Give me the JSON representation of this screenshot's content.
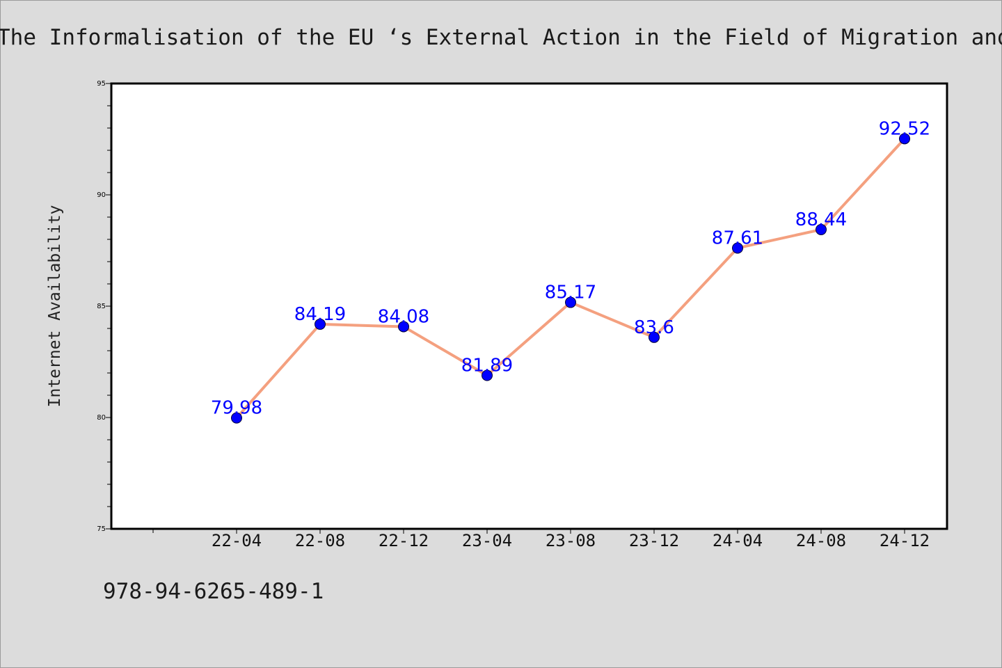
{
  "title": "The Informalisation of the EU ‘s External Action in the Field of Migration and Asylum",
  "footer": "978-94-6265-489-1",
  "chart_data": {
    "type": "line",
    "title": "The Informalisation of the EU ‘s External Action in the Field of Migration and Asylum",
    "xlabel": "",
    "ylabel": "Internet Availability",
    "ylim": [
      75,
      95
    ],
    "y_ticks": [
      75,
      80,
      85,
      90,
      95
    ],
    "categories": [
      "22-04",
      "22-08",
      "22-12",
      "23-04",
      "23-08",
      "23-12",
      "24-04",
      "24-08",
      "24-12"
    ],
    "series": [
      {
        "values": [
          79.98,
          84.19,
          84.08,
          81.89,
          85.17,
          83.6,
          87.61,
          88.44,
          92.52
        ],
        "labels": [
          "79.98",
          "84.19",
          "84.08",
          "81.89",
          "85.17",
          "83.6",
          "87.61",
          "88.44",
          "92.52"
        ]
      }
    ],
    "grid": false,
    "colors": {
      "line": "#f4a07f",
      "marker": "#0000ff",
      "label": "#0000ff",
      "axis": "#000000"
    }
  }
}
